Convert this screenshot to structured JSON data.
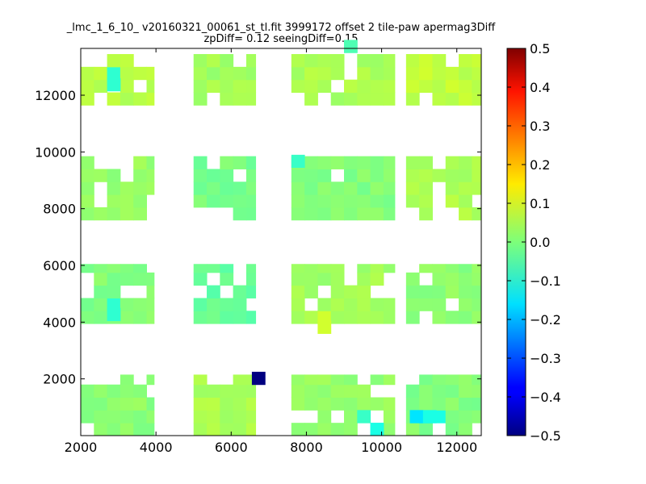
{
  "chart_data": {
    "type": "heatmap",
    "title_line1": "_lmc_1_6_10_ v20160321_00061_st_tl.fit 3999172 offset 2 tile-paw apermag3Diff",
    "title_line2": "zpDiff= 0.12 seeingDiff=0.15",
    "xlim": [
      2000,
      12650
    ],
    "ylim": [
      0,
      13650
    ],
    "x_ticks": [
      2000,
      4000,
      6000,
      8000,
      10000,
      12000
    ],
    "x_tick_labels": [
      "2000",
      "4000",
      "6000",
      "8000",
      "10000",
      "12000"
    ],
    "y_ticks": [
      2000,
      4000,
      6000,
      8000,
      10000,
      12000
    ],
    "y_tick_labels": [
      "2000",
      "4000",
      "6000",
      "8000",
      "10000",
      "12000"
    ],
    "colorbar": {
      "colormap": "jet",
      "range": [
        -0.5,
        0.5
      ],
      "ticks": [
        -0.5,
        -0.4,
        -0.3,
        -0.2,
        -0.1,
        0.0,
        0.1,
        0.2,
        0.3,
        0.4,
        0.5
      ],
      "tick_labels": [
        "−0.5",
        "−0.4",
        "−0.3",
        "−0.2",
        "−0.1",
        "0.0",
        "0.1",
        "0.2",
        "0.3",
        "0.4",
        "0.5"
      ]
    },
    "cell_size": [
      350,
      450
    ],
    "regions": [
      {
        "x_range": [
          2000,
          3950
        ],
        "y_range": [
          0,
          2150
        ],
        "value": 0.01
      },
      {
        "x_range": [
          2000,
          3950
        ],
        "y_range": [
          3950,
          6050
        ],
        "value": 0.0
      },
      {
        "x_range": [
          2000,
          3950
        ],
        "y_range": [
          7600,
          9850
        ],
        "value": 0.02
      },
      {
        "x_range": [
          2000,
          3950
        ],
        "y_range": [
          11650,
          13650
        ],
        "value": 0.05
      },
      {
        "x_range": [
          5000,
          6650
        ],
        "y_range": [
          0,
          2150
        ],
        "value": 0.04
      },
      {
        "x_range": [
          5000,
          6650
        ],
        "y_range": [
          3950,
          6050
        ],
        "value": -0.03
      },
      {
        "x_range": [
          5000,
          6650
        ],
        "y_range": [
          7600,
          9850
        ],
        "value": -0.01
      },
      {
        "x_range": [
          5000,
          6650
        ],
        "y_range": [
          11650,
          13650
        ],
        "value": 0.03
      },
      {
        "x_range": [
          7600,
          10350
        ],
        "y_range": [
          0,
          2150
        ],
        "value": 0.02
      },
      {
        "x_range": [
          7600,
          10350
        ],
        "y_range": [
          3950,
          6050
        ],
        "value": 0.03
      },
      {
        "x_range": [
          7600,
          10350
        ],
        "y_range": [
          7600,
          9850
        ],
        "value": 0.0
      },
      {
        "x_range": [
          7600,
          10350
        ],
        "y_range": [
          11650,
          13650
        ],
        "value": 0.04
      },
      {
        "x_range": [
          10650,
          12650
        ],
        "y_range": [
          0,
          2150
        ],
        "value": 0.0
      },
      {
        "x_range": [
          10650,
          12650
        ],
        "y_range": [
          3950,
          6050
        ],
        "value": 0.01
      },
      {
        "x_range": [
          10650,
          12650
        ],
        "y_range": [
          7600,
          9850
        ],
        "value": 0.04
      },
      {
        "x_range": [
          10650,
          12650
        ],
        "y_range": [
          11650,
          13650
        ],
        "value": 0.06
      }
    ],
    "outliers": [
      {
        "x": 6800,
        "y": 1925,
        "value": -0.5
      },
      {
        "x": 2800,
        "y": 12150,
        "value": -0.08
      },
      {
        "x": 2800,
        "y": 4450,
        "value": -0.08
      },
      {
        "x": 7900,
        "y": 9625,
        "value": -0.07
      },
      {
        "x": 10950,
        "y": 625,
        "value": -0.15
      },
      {
        "x": 11300,
        "y": 625,
        "value": -0.1
      },
      {
        "x": 9750,
        "y": 225,
        "value": -0.1
      },
      {
        "x": 9400,
        "y": 625,
        "value": -0.07
      },
      {
        "x": 8550,
        "y": 3750,
        "value": 0.08
      },
      {
        "x": 9050,
        "y": 13500,
        "value": -0.05
      }
    ]
  }
}
